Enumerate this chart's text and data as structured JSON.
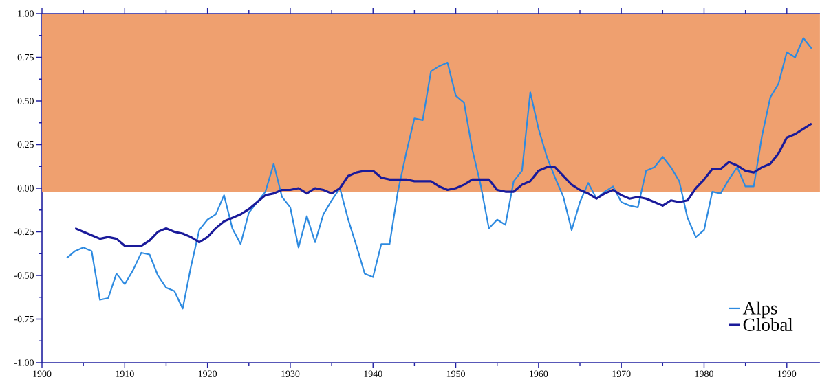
{
  "chart_data": {
    "type": "line",
    "x": [
      1903,
      1904,
      1905,
      1906,
      1907,
      1908,
      1909,
      1910,
      1911,
      1912,
      1913,
      1914,
      1915,
      1916,
      1917,
      1918,
      1919,
      1920,
      1921,
      1922,
      1923,
      1924,
      1925,
      1926,
      1927,
      1928,
      1929,
      1930,
      1931,
      1932,
      1933,
      1934,
      1935,
      1936,
      1937,
      1938,
      1939,
      1940,
      1941,
      1942,
      1943,
      1944,
      1945,
      1946,
      1947,
      1948,
      1949,
      1950,
      1951,
      1952,
      1953,
      1954,
      1955,
      1956,
      1957,
      1958,
      1959,
      1960,
      1961,
      1962,
      1963,
      1964,
      1965,
      1966,
      1967,
      1968,
      1969,
      1970,
      1971,
      1972,
      1973,
      1974,
      1975,
      1976,
      1977,
      1978,
      1979,
      1980,
      1981,
      1982,
      1983,
      1984,
      1985,
      1986,
      1987,
      1988,
      1989,
      1990,
      1991,
      1992,
      1993
    ],
    "series": [
      {
        "name": "Alps",
        "color": "#2d8ae0",
        "values": [
          -0.4,
          -0.36,
          -0.34,
          -0.36,
          -0.64,
          -0.63,
          -0.49,
          -0.55,
          -0.47,
          -0.37,
          -0.38,
          -0.5,
          -0.57,
          -0.59,
          -0.69,
          -0.45,
          -0.24,
          -0.18,
          -0.15,
          -0.04,
          -0.23,
          -0.32,
          -0.14,
          -0.08,
          -0.02,
          0.14,
          -0.05,
          -0.11,
          -0.34,
          -0.16,
          -0.31,
          -0.15,
          -0.07,
          0.0,
          -0.18,
          -0.33,
          -0.49,
          -0.51,
          -0.32,
          -0.32,
          -0.02,
          0.2,
          0.4,
          0.39,
          0.67,
          0.7,
          0.72,
          0.53,
          0.49,
          0.22,
          0.02,
          -0.23,
          -0.18,
          -0.21,
          0.04,
          0.1,
          0.55,
          0.34,
          0.18,
          0.06,
          -0.05,
          -0.24,
          -0.08,
          0.03,
          -0.06,
          -0.02,
          0.01,
          -0.08,
          -0.1,
          -0.11,
          0.1,
          0.12,
          0.18,
          0.12,
          0.04,
          -0.17,
          -0.28,
          -0.24,
          -0.02,
          -0.03,
          0.05,
          0.12,
          0.01,
          0.01,
          0.3,
          0.52,
          0.6,
          0.78,
          0.75,
          0.86,
          0.8
        ]
      },
      {
        "name": "Global",
        "color": "#1a1a9a",
        "values": [
          null,
          -0.23,
          -0.25,
          -0.27,
          -0.29,
          -0.28,
          -0.29,
          -0.33,
          -0.33,
          -0.33,
          -0.3,
          -0.25,
          -0.23,
          -0.25,
          -0.26,
          -0.28,
          -0.31,
          -0.28,
          -0.23,
          -0.19,
          -0.17,
          -0.15,
          -0.12,
          -0.08,
          -0.04,
          -0.03,
          -0.01,
          -0.01,
          0.0,
          -0.03,
          0.0,
          -0.01,
          -0.03,
          0.0,
          0.07,
          0.09,
          0.1,
          0.1,
          0.06,
          0.05,
          0.05,
          0.05,
          0.04,
          0.04,
          0.04,
          0.01,
          -0.01,
          0.0,
          0.02,
          0.05,
          0.05,
          0.05,
          -0.01,
          -0.02,
          -0.02,
          0.02,
          0.04,
          0.1,
          0.12,
          0.12,
          0.07,
          0.02,
          -0.01,
          -0.03,
          -0.06,
          -0.03,
          -0.01,
          -0.04,
          -0.06,
          -0.05,
          -0.06,
          -0.08,
          -0.1,
          -0.07,
          -0.08,
          -0.07,
          0.0,
          0.05,
          0.11,
          0.11,
          0.15,
          0.13,
          0.1,
          0.09,
          0.12,
          0.14,
          0.2,
          0.29,
          0.31,
          0.34,
          0.37
        ]
      }
    ],
    "xlim": [
      1900,
      1994
    ],
    "ylim": [
      -1.0,
      1.0
    ],
    "xticks": [
      1900,
      {
        "value": 1905,
        "label": null
      },
      1910,
      {
        "value": 1915,
        "label": null
      },
      1920,
      {
        "value": 1925,
        "label": null
      },
      1930,
      {
        "value": 1935,
        "label": null
      },
      1940,
      {
        "value": 1945,
        "label": null
      },
      1950,
      {
        "value": 1955,
        "label": null
      },
      1960,
      {
        "value": 1965,
        "label": null
      },
      1970,
      {
        "value": 1975,
        "label": null
      },
      1980,
      {
        "value": 1985,
        "label": null
      },
      1990
    ],
    "yticks": [
      {
        "value": -1.0,
        "label": "-1.00"
      },
      {
        "value": -0.875,
        "label": null
      },
      {
        "value": -0.75,
        "label": "-0.75"
      },
      {
        "value": -0.625,
        "label": null
      },
      {
        "value": -0.5,
        "label": "-0.50"
      },
      {
        "value": -0.375,
        "label": null
      },
      {
        "value": -0.25,
        "label": "-0.25"
      },
      {
        "value": -0.125,
        "label": null
      },
      {
        "value": 0.0,
        "label": "0.00"
      },
      {
        "value": 0.125,
        "label": null
      },
      {
        "value": 0.25,
        "label": "0.25"
      },
      {
        "value": 0.375,
        "label": null
      },
      {
        "value": 0.5,
        "label": "0.50"
      },
      {
        "value": 0.625,
        "label": null
      },
      {
        "value": 0.75,
        "label": "0.75"
      },
      {
        "value": 0.875,
        "label": null
      },
      {
        "value": 1.0,
        "label": "1.00"
      }
    ],
    "bands": [
      {
        "axis": "y",
        "from": -0.02,
        "to": 1.0,
        "color": "#efa06f"
      }
    ],
    "grid": false,
    "legend": "bottom right",
    "marker": "none",
    "line_style": "solid"
  }
}
